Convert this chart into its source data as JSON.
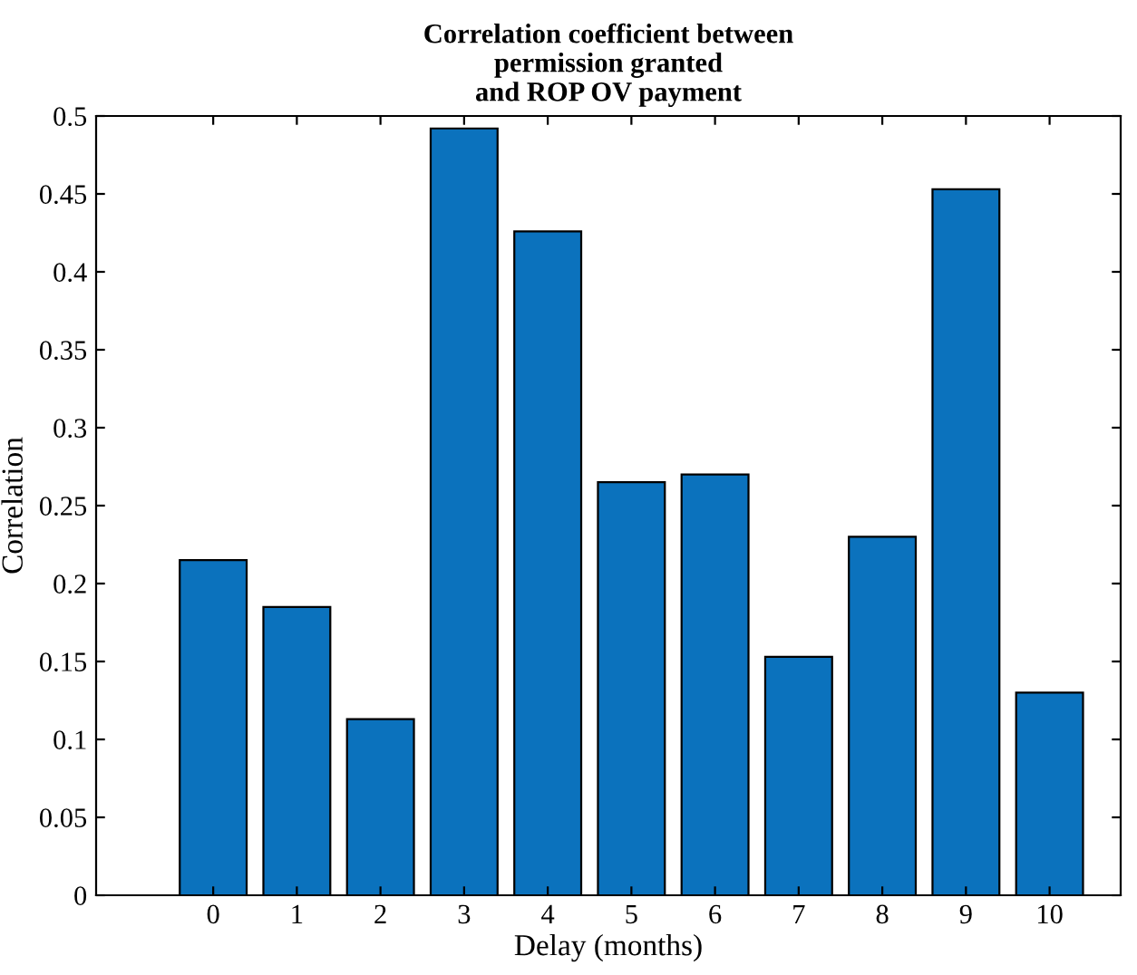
{
  "chart_data": {
    "type": "bar",
    "title": "Correlation coefficient between\npermission granted\nand ROP OV payment",
    "xlabel": "Delay (months)",
    "ylabel": "Correlation",
    "categories": [
      "0",
      "1",
      "2",
      "3",
      "4",
      "5",
      "6",
      "7",
      "8",
      "9",
      "10"
    ],
    "series": [
      {
        "color": "#0b72bd",
        "values": [
          0.215,
          0.185,
          0.113,
          0.492,
          0.426,
          0.265,
          0.27,
          0.153,
          0.23,
          0.453,
          0.13
        ]
      }
    ],
    "ylim": [
      0,
      0.5
    ],
    "yticks": [
      0,
      0.05,
      0.1,
      0.15,
      0.2,
      0.25,
      0.3,
      0.35,
      0.4,
      0.45,
      0.5
    ],
    "grid": false,
    "legend": false
  }
}
